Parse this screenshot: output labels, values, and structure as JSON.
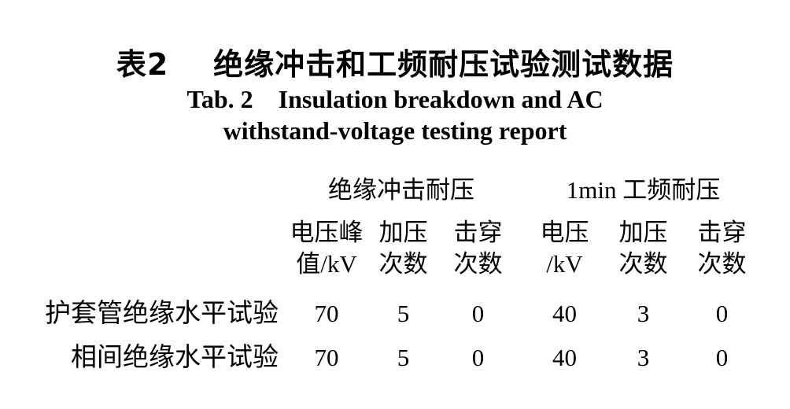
{
  "caption": {
    "zh": "表2    绝缘冲击和工频耐压试验测试数据",
    "en_line1": "Tab. 2    Insulation breakdown and AC",
    "en_line2": "withstand-voltage testing report"
  },
  "table": {
    "group_headers": [
      {
        "label": "绝缘冲击耐压"
      },
      {
        "label": "1min 工频耐压"
      }
    ],
    "column_headers": [
      {
        "line1": "电压峰",
        "line2": "值/kV"
      },
      {
        "line1": "加压",
        "line2": "次数"
      },
      {
        "line1": "击穿",
        "line2": "次数"
      },
      {
        "line1": "电压",
        "line2": "/kV"
      },
      {
        "line1": "加压",
        "line2": "次数"
      },
      {
        "line1": "击穿",
        "line2": "次数"
      }
    ],
    "rows": [
      {
        "label": "护套管绝缘水平试验",
        "values": [
          "70",
          "5",
          "0",
          "40",
          "3",
          "0"
        ]
      },
      {
        "label": "相间绝缘水平试验",
        "values": [
          "70",
          "5",
          "0",
          "40",
          "3",
          "0"
        ]
      }
    ]
  },
  "colors": {
    "text": "#000000",
    "background": "#ffffff"
  }
}
